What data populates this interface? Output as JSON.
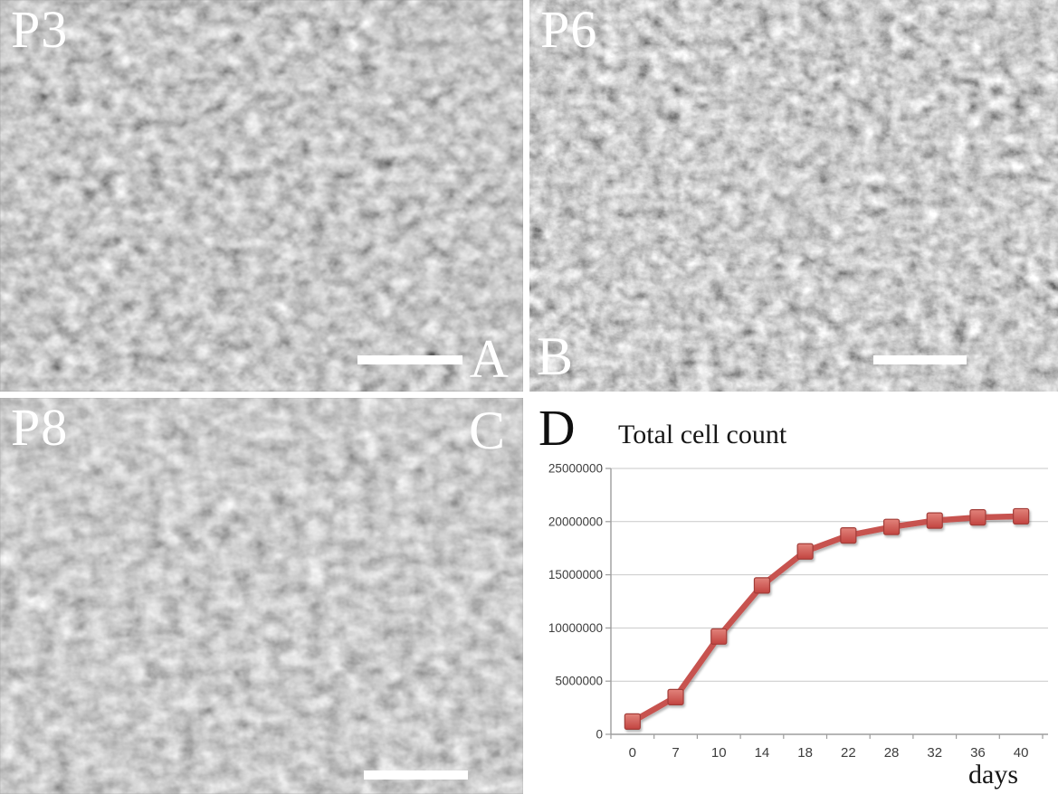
{
  "figure": {
    "panels": [
      {
        "letter": "A",
        "passage_label": "P3",
        "has_scale_bar": true
      },
      {
        "letter": "B",
        "passage_label": "P6",
        "has_scale_bar": true
      },
      {
        "letter": "C",
        "passage_label": "P8",
        "has_scale_bar": true
      },
      {
        "letter": "D",
        "content": "growth-curve-chart"
      }
    ]
  },
  "chart_data": {
    "type": "line",
    "title": "Total cell count",
    "xlabel": "days",
    "ylabel": "",
    "x": [
      0,
      7,
      10,
      14,
      18,
      22,
      28,
      32,
      36,
      40
    ],
    "x_labels": [
      "0",
      "7",
      "10",
      "14",
      "18",
      "22",
      "28",
      "32",
      "36",
      "40"
    ],
    "values": [
      1200000,
      3500000,
      9200000,
      14000000,
      17200000,
      18700000,
      19500000,
      20100000,
      20400000,
      20500000
    ],
    "ylim": [
      0,
      25000000
    ],
    "yticks": [
      0,
      5000000,
      10000000,
      15000000,
      20000000,
      25000000
    ],
    "ytick_labels": [
      "0",
      "5000000",
      "10000000",
      "15000000",
      "20000000",
      "25000000"
    ],
    "grid": true,
    "legend": null,
    "marker": "square",
    "colors": {
      "line": "#C75350",
      "marker_fill_top": "#E2837B",
      "marker_fill_bottom": "#C24440",
      "marker_stroke": "#A23C39",
      "axis": "#9d9d9d",
      "gridline": "#c9c9c9"
    }
  }
}
